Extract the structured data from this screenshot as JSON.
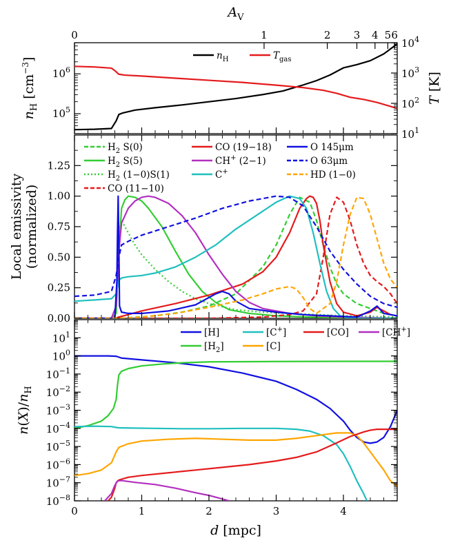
{
  "chart_data": [
    {
      "type": "line",
      "panel": "top",
      "title": "",
      "x_top_axis": {
        "label": "A_V",
        "ticks": [
          "0",
          "1",
          "2",
          "3",
          "4",
          "5",
          "6"
        ],
        "tick_positions_mpc": [
          0,
          2.82,
          3.76,
          4.2,
          4.47,
          4.66,
          4.76
        ]
      },
      "xlabel": "",
      "xlim": [
        0,
        4.8
      ],
      "ylabel_left": "n_H [cm^-3]",
      "ylim_left_log": [
        4.5,
        6.78
      ],
      "ylabel_right": "T [K]",
      "ylim_right_log": [
        1,
        4
      ],
      "left_ticks": [
        "10^5",
        "10^6"
      ],
      "right_ticks": [
        "10^1",
        "10^2",
        "10^3",
        "10^4"
      ],
      "legend": [
        "n_H",
        "T_gas"
      ],
      "legend_placement": "top-center",
      "series": [
        {
          "name": "n_H",
          "color": "#000000",
          "axis": "left",
          "x": [
            0,
            0.3,
            0.55,
            0.62,
            0.66,
            0.72,
            0.9,
            1.2,
            1.6,
            2.0,
            2.4,
            2.8,
            3.1,
            3.4,
            3.6,
            3.8,
            4.0,
            4.2,
            4.4,
            4.6,
            4.8
          ],
          "log_y": [
            4.6,
            4.61,
            4.63,
            4.82,
            4.98,
            5.02,
            5.09,
            5.15,
            5.22,
            5.3,
            5.38,
            5.48,
            5.57,
            5.72,
            5.83,
            5.97,
            6.15,
            6.23,
            6.33,
            6.5,
            6.75
          ]
        },
        {
          "name": "T_gas",
          "color": "#e41a1c",
          "axis": "right",
          "x": [
            0,
            0.3,
            0.55,
            0.6,
            0.66,
            0.75,
            1.0,
            1.5,
            2.0,
            2.5,
            3.0,
            3.4,
            3.7,
            3.9,
            4.1,
            4.3,
            4.5,
            4.7,
            4.8
          ],
          "log_y": [
            3.22,
            3.2,
            3.16,
            3.08,
            2.96,
            2.93,
            2.9,
            2.83,
            2.76,
            2.69,
            2.6,
            2.52,
            2.43,
            2.33,
            2.2,
            2.13,
            2.03,
            1.9,
            1.83
          ]
        }
      ]
    },
    {
      "type": "line",
      "panel": "middle",
      "title": "",
      "ylabel": "Local emissivity (normalized)",
      "xlim": [
        0,
        4.8
      ],
      "ylim": [
        0,
        1.5
      ],
      "y_ticks": [
        "0.00",
        "0.25",
        "0.50",
        "0.75",
        "1.00",
        "1.25"
      ],
      "legend": [
        "H2 S(0)",
        "H2 S(5)",
        "H2 (1-0)S(1)",
        "CO (11-10)",
        "CO (19-18)",
        "CH+ (2-1)",
        "C+",
        "O 145μm",
        "O 63μm",
        "HD (1-0)"
      ],
      "legend_placement": "top",
      "series": [
        {
          "name": "H2 S(0)",
          "color": "#32cd32",
          "dash": "dashed",
          "x": [
            0,
            0.5,
            0.66,
            0.8,
            1.2,
            1.6,
            2.0,
            2.4,
            2.8,
            3.0,
            3.2,
            3.35,
            3.5,
            3.6,
            3.7,
            3.8,
            3.9,
            4.0,
            4.2,
            4.4,
            4.6,
            4.8
          ],
          "y": [
            0,
            0,
            0,
            0.005,
            0.02,
            0.05,
            0.1,
            0.2,
            0.42,
            0.6,
            0.85,
            0.99,
            0.95,
            0.8,
            0.6,
            0.42,
            0.28,
            0.2,
            0.12,
            0.08,
            0.04,
            0.02
          ]
        },
        {
          "name": "H2 S(5)",
          "color": "#32cd32",
          "dash": "solid",
          "x": [
            0,
            0.55,
            0.62,
            0.66,
            0.7,
            0.75,
            0.8,
            0.9,
            1.0,
            1.1,
            1.3,
            1.5,
            1.7,
            1.9,
            2.1,
            2.3,
            2.6,
            3.0,
            3.5,
            4.0,
            4.8
          ],
          "y": [
            0,
            0,
            0.04,
            0.55,
            0.9,
            0.97,
            1.0,
            0.99,
            0.96,
            0.9,
            0.75,
            0.55,
            0.36,
            0.22,
            0.13,
            0.07,
            0.04,
            0.02,
            0.01,
            0.005,
            0
          ]
        },
        {
          "name": "H2 (1-0)S(1)",
          "color": "#32cd32",
          "dash": "dotted",
          "x": [
            0,
            0.55,
            0.62,
            0.66,
            0.7,
            0.8,
            0.9,
            1.0,
            1.2,
            1.4,
            1.6,
            1.8,
            2.0,
            2.4,
            2.8,
            3.2,
            3.6,
            4.0,
            4.8
          ],
          "y": [
            0,
            0,
            0.1,
            0.7,
            0.8,
            0.7,
            0.6,
            0.52,
            0.4,
            0.3,
            0.22,
            0.16,
            0.12,
            0.07,
            0.05,
            0.04,
            0.03,
            0.02,
            0.01
          ]
        },
        {
          "name": "CO (11-10)",
          "color": "#e41a1c",
          "dash": "dashed",
          "x": [
            0,
            0.66,
            1.0,
            2.0,
            2.8,
            3.2,
            3.4,
            3.6,
            3.7,
            3.8,
            3.9,
            4.0,
            4.1,
            4.2,
            4.3,
            4.4,
            4.5,
            4.6,
            4.7,
            4.8
          ],
          "y": [
            0,
            0,
            0,
            0,
            0.01,
            0.03,
            0.06,
            0.2,
            0.5,
            0.85,
            0.99,
            0.95,
            0.8,
            0.6,
            0.45,
            0.35,
            0.3,
            0.26,
            0.2,
            0.12
          ]
        },
        {
          "name": "CO (19-18)",
          "color": "#e41a1c",
          "dash": "solid",
          "x": [
            0,
            0.6,
            0.66,
            0.8,
            1.0,
            1.5,
            2.0,
            2.5,
            2.8,
            3.0,
            3.2,
            3.35,
            3.45,
            3.5,
            3.55,
            3.6,
            3.65,
            3.7,
            3.8,
            3.9,
            4.0,
            4.2,
            4.4,
            4.5,
            4.6,
            4.7,
            4.8
          ],
          "y": [
            0,
            0,
            0.01,
            0.03,
            0.06,
            0.12,
            0.19,
            0.28,
            0.38,
            0.5,
            0.7,
            0.9,
            0.98,
            1.0,
            0.99,
            0.94,
            0.8,
            0.6,
            0.3,
            0.12,
            0.05,
            0.02,
            0.05,
            0.09,
            0.06,
            0.03,
            0.02
          ]
        },
        {
          "name": "CH+ (2-1)",
          "color": "#b22fbf",
          "dash": "solid",
          "x": [
            0,
            0.55,
            0.62,
            0.66,
            0.7,
            0.8,
            0.9,
            1.0,
            1.1,
            1.2,
            1.4,
            1.6,
            1.8,
            2.0,
            2.2,
            2.4,
            2.6,
            2.8,
            3.2,
            3.6,
            4.0,
            4.8
          ],
          "y": [
            0,
            0,
            0.1,
            0.55,
            0.78,
            0.9,
            0.96,
            0.99,
            1.0,
            0.99,
            0.94,
            0.84,
            0.7,
            0.52,
            0.36,
            0.22,
            0.13,
            0.08,
            0.04,
            0.02,
            0.01,
            0
          ]
        },
        {
          "name": "C+",
          "color": "#1fbfbf",
          "dash": "solid",
          "x": [
            0,
            0.3,
            0.55,
            0.62,
            0.66,
            0.7,
            0.8,
            1.0,
            1.2,
            1.5,
            1.8,
            2.1,
            2.4,
            2.7,
            3.0,
            3.2,
            3.35,
            3.45,
            3.55,
            3.65,
            3.75,
            3.85,
            3.95,
            4.1,
            4.3,
            4.5,
            4.8
          ],
          "y": [
            0.14,
            0.15,
            0.16,
            0.2,
            0.31,
            0.33,
            0.34,
            0.35,
            0.37,
            0.42,
            0.5,
            0.6,
            0.73,
            0.84,
            0.95,
            1.0,
            0.98,
            0.9,
            0.7,
            0.45,
            0.22,
            0.08,
            0.02,
            0,
            0,
            0,
            0
          ]
        },
        {
          "name": "O 145μm",
          "color": "#1010e0",
          "dash": "solid",
          "x": [
            0,
            0.6,
            0.63,
            0.64,
            0.65,
            0.66,
            0.67,
            0.7,
            0.8,
            1.0,
            1.4,
            1.8,
            2.0,
            2.1,
            2.2,
            2.3,
            2.4,
            2.6,
            3.0,
            3.4,
            3.8,
            4.2,
            4.4,
            4.5,
            4.6,
            4.8
          ],
          "y": [
            0,
            0,
            0.3,
            0.7,
            1.0,
            0.6,
            0.1,
            0.05,
            0.04,
            0.04,
            0.06,
            0.11,
            0.17,
            0.2,
            0.22,
            0.2,
            0.14,
            0.08,
            0.05,
            0.03,
            0.02,
            0.01,
            0.06,
            0.1,
            0.04,
            0.02
          ]
        },
        {
          "name": "O 63μm",
          "color": "#1010e0",
          "dash": "dashed",
          "x": [
            0,
            0.3,
            0.55,
            0.62,
            0.66,
            0.7,
            0.8,
            1.0,
            1.4,
            1.8,
            2.2,
            2.6,
            3.0,
            3.2,
            3.4,
            3.6,
            3.8,
            4.0,
            4.2,
            4.4,
            4.6,
            4.8
          ],
          "y": [
            0.18,
            0.19,
            0.22,
            0.35,
            0.5,
            0.6,
            0.63,
            0.68,
            0.75,
            0.82,
            0.9,
            0.96,
            1.0,
            0.99,
            0.92,
            0.75,
            0.55,
            0.4,
            0.28,
            0.18,
            0.12,
            0.09
          ]
        },
        {
          "name": "HD (1-0)",
          "color": "#ffa500",
          "dash": "dashed",
          "x": [
            0,
            0.66,
            1.0,
            1.5,
            2.0,
            2.5,
            2.8,
            3.0,
            3.2,
            3.3,
            3.4,
            3.5,
            3.6,
            3.8,
            3.9,
            4.0,
            4.1,
            4.2,
            4.3,
            4.4,
            4.5,
            4.6,
            4.7,
            4.8
          ],
          "y": [
            0,
            0,
            0.01,
            0.04,
            0.09,
            0.15,
            0.2,
            0.24,
            0.26,
            0.24,
            0.17,
            0.08,
            0.04,
            0.12,
            0.3,
            0.6,
            0.85,
            0.99,
            0.98,
            0.85,
            0.65,
            0.45,
            0.32,
            0.25
          ]
        }
      ]
    },
    {
      "type": "line",
      "panel": "bottom",
      "title": "",
      "xlabel": "d [mpc]",
      "xlim": [
        0,
        4.8
      ],
      "x_ticks": [
        "0",
        "1",
        "2",
        "3",
        "4"
      ],
      "ylabel": "n(X)/n_H",
      "ylim_log": [
        -8,
        2
      ],
      "y_ticks": [
        "10^-8",
        "10^-7",
        "10^-6",
        "10^-5",
        "10^-4",
        "10^-3",
        "10^-2",
        "10^-1",
        "10^0",
        "10^1"
      ],
      "legend": [
        "[H]",
        "[C+]",
        "[CO]",
        "[CH+]",
        "[H2]",
        "[C]"
      ],
      "legend_placement": "top-right",
      "series": [
        {
          "name": "[H]",
          "color": "#1010e0",
          "x": [
            0,
            0.5,
            0.62,
            0.7,
            1.0,
            1.5,
            2.0,
            2.5,
            3.0,
            3.3,
            3.6,
            3.8,
            4.0,
            4.1,
            4.2,
            4.3,
            4.4,
            4.5,
            4.6,
            4.7,
            4.8
          ],
          "log_y": [
            0,
            0,
            -0.02,
            -0.12,
            -0.22,
            -0.38,
            -0.6,
            -0.95,
            -1.4,
            -1.85,
            -2.4,
            -2.9,
            -3.6,
            -4.1,
            -4.5,
            -4.75,
            -4.82,
            -4.75,
            -4.5,
            -3.9,
            -3.0
          ]
        },
        {
          "name": "[H2]",
          "color": "#32cd32",
          "x": [
            0,
            0.2,
            0.4,
            0.5,
            0.58,
            0.62,
            0.64,
            0.66,
            0.7,
            0.8,
            1.0,
            1.3,
            1.6,
            2.0,
            3.0,
            4.0,
            4.8
          ],
          "log_y": [
            -4.0,
            -3.85,
            -3.6,
            -3.3,
            -2.9,
            -2.4,
            -1.6,
            -1.05,
            -0.85,
            -0.7,
            -0.55,
            -0.45,
            -0.38,
            -0.33,
            -0.31,
            -0.3,
            -0.3
          ]
        },
        {
          "name": "[C+]",
          "color": "#1fbfbf",
          "x": [
            0,
            0.3,
            0.55,
            0.62,
            0.66,
            0.8,
            1.2,
            1.6,
            2.0,
            2.5,
            3.0,
            3.3,
            3.5,
            3.7,
            3.9,
            4.0,
            4.1,
            4.2,
            4.3,
            4.35
          ],
          "log_y": [
            -3.9,
            -3.88,
            -3.9,
            -3.95,
            -3.97,
            -3.98,
            -4.0,
            -4.02,
            -4.02,
            -4.0,
            -4.0,
            -4.05,
            -4.15,
            -4.4,
            -4.9,
            -5.4,
            -6.1,
            -6.9,
            -7.6,
            -8.0
          ]
        },
        {
          "name": "[C]",
          "color": "#ffa500",
          "x": [
            0,
            0.2,
            0.4,
            0.55,
            0.62,
            0.66,
            0.8,
            1.0,
            1.4,
            1.8,
            2.2,
            2.6,
            3.0,
            3.3,
            3.6,
            3.9,
            4.1,
            4.2,
            4.3,
            4.4,
            4.5,
            4.6,
            4.7,
            4.8
          ],
          "log_y": [
            -6.6,
            -6.5,
            -6.3,
            -5.9,
            -5.3,
            -5.05,
            -4.85,
            -4.7,
            -4.6,
            -4.55,
            -4.6,
            -4.65,
            -4.65,
            -4.55,
            -4.4,
            -4.25,
            -4.25,
            -4.4,
            -4.8,
            -5.3,
            -5.8,
            -6.3,
            -6.9,
            -7.2
          ]
        },
        {
          "name": "[CO]",
          "color": "#e41a1c",
          "x": [
            0.5,
            0.55,
            0.6,
            0.62,
            0.66,
            0.8,
            1.0,
            1.4,
            1.8,
            2.2,
            2.6,
            3.0,
            3.3,
            3.6,
            3.9,
            4.1,
            4.3,
            4.4,
            4.5,
            4.6,
            4.7,
            4.8
          ],
          "log_y": [
            -8.0,
            -7.8,
            -7.3,
            -7.0,
            -6.85,
            -6.7,
            -6.6,
            -6.45,
            -6.3,
            -6.15,
            -6.0,
            -5.8,
            -5.6,
            -5.3,
            -4.8,
            -4.45,
            -4.2,
            -4.1,
            -4.05,
            -4.05,
            -4.05,
            -4.05
          ]
        },
        {
          "name": "[CH+]",
          "color": "#b22fbf",
          "x": [
            0.45,
            0.55,
            0.6,
            0.64,
            0.7,
            0.9,
            1.2,
            1.5,
            1.8,
            2.0,
            2.2,
            2.3
          ],
          "log_y": [
            -8.0,
            -7.6,
            -7.15,
            -6.9,
            -6.88,
            -6.98,
            -7.1,
            -7.3,
            -7.55,
            -7.7,
            -7.9,
            -8.0
          ]
        }
      ]
    }
  ]
}
